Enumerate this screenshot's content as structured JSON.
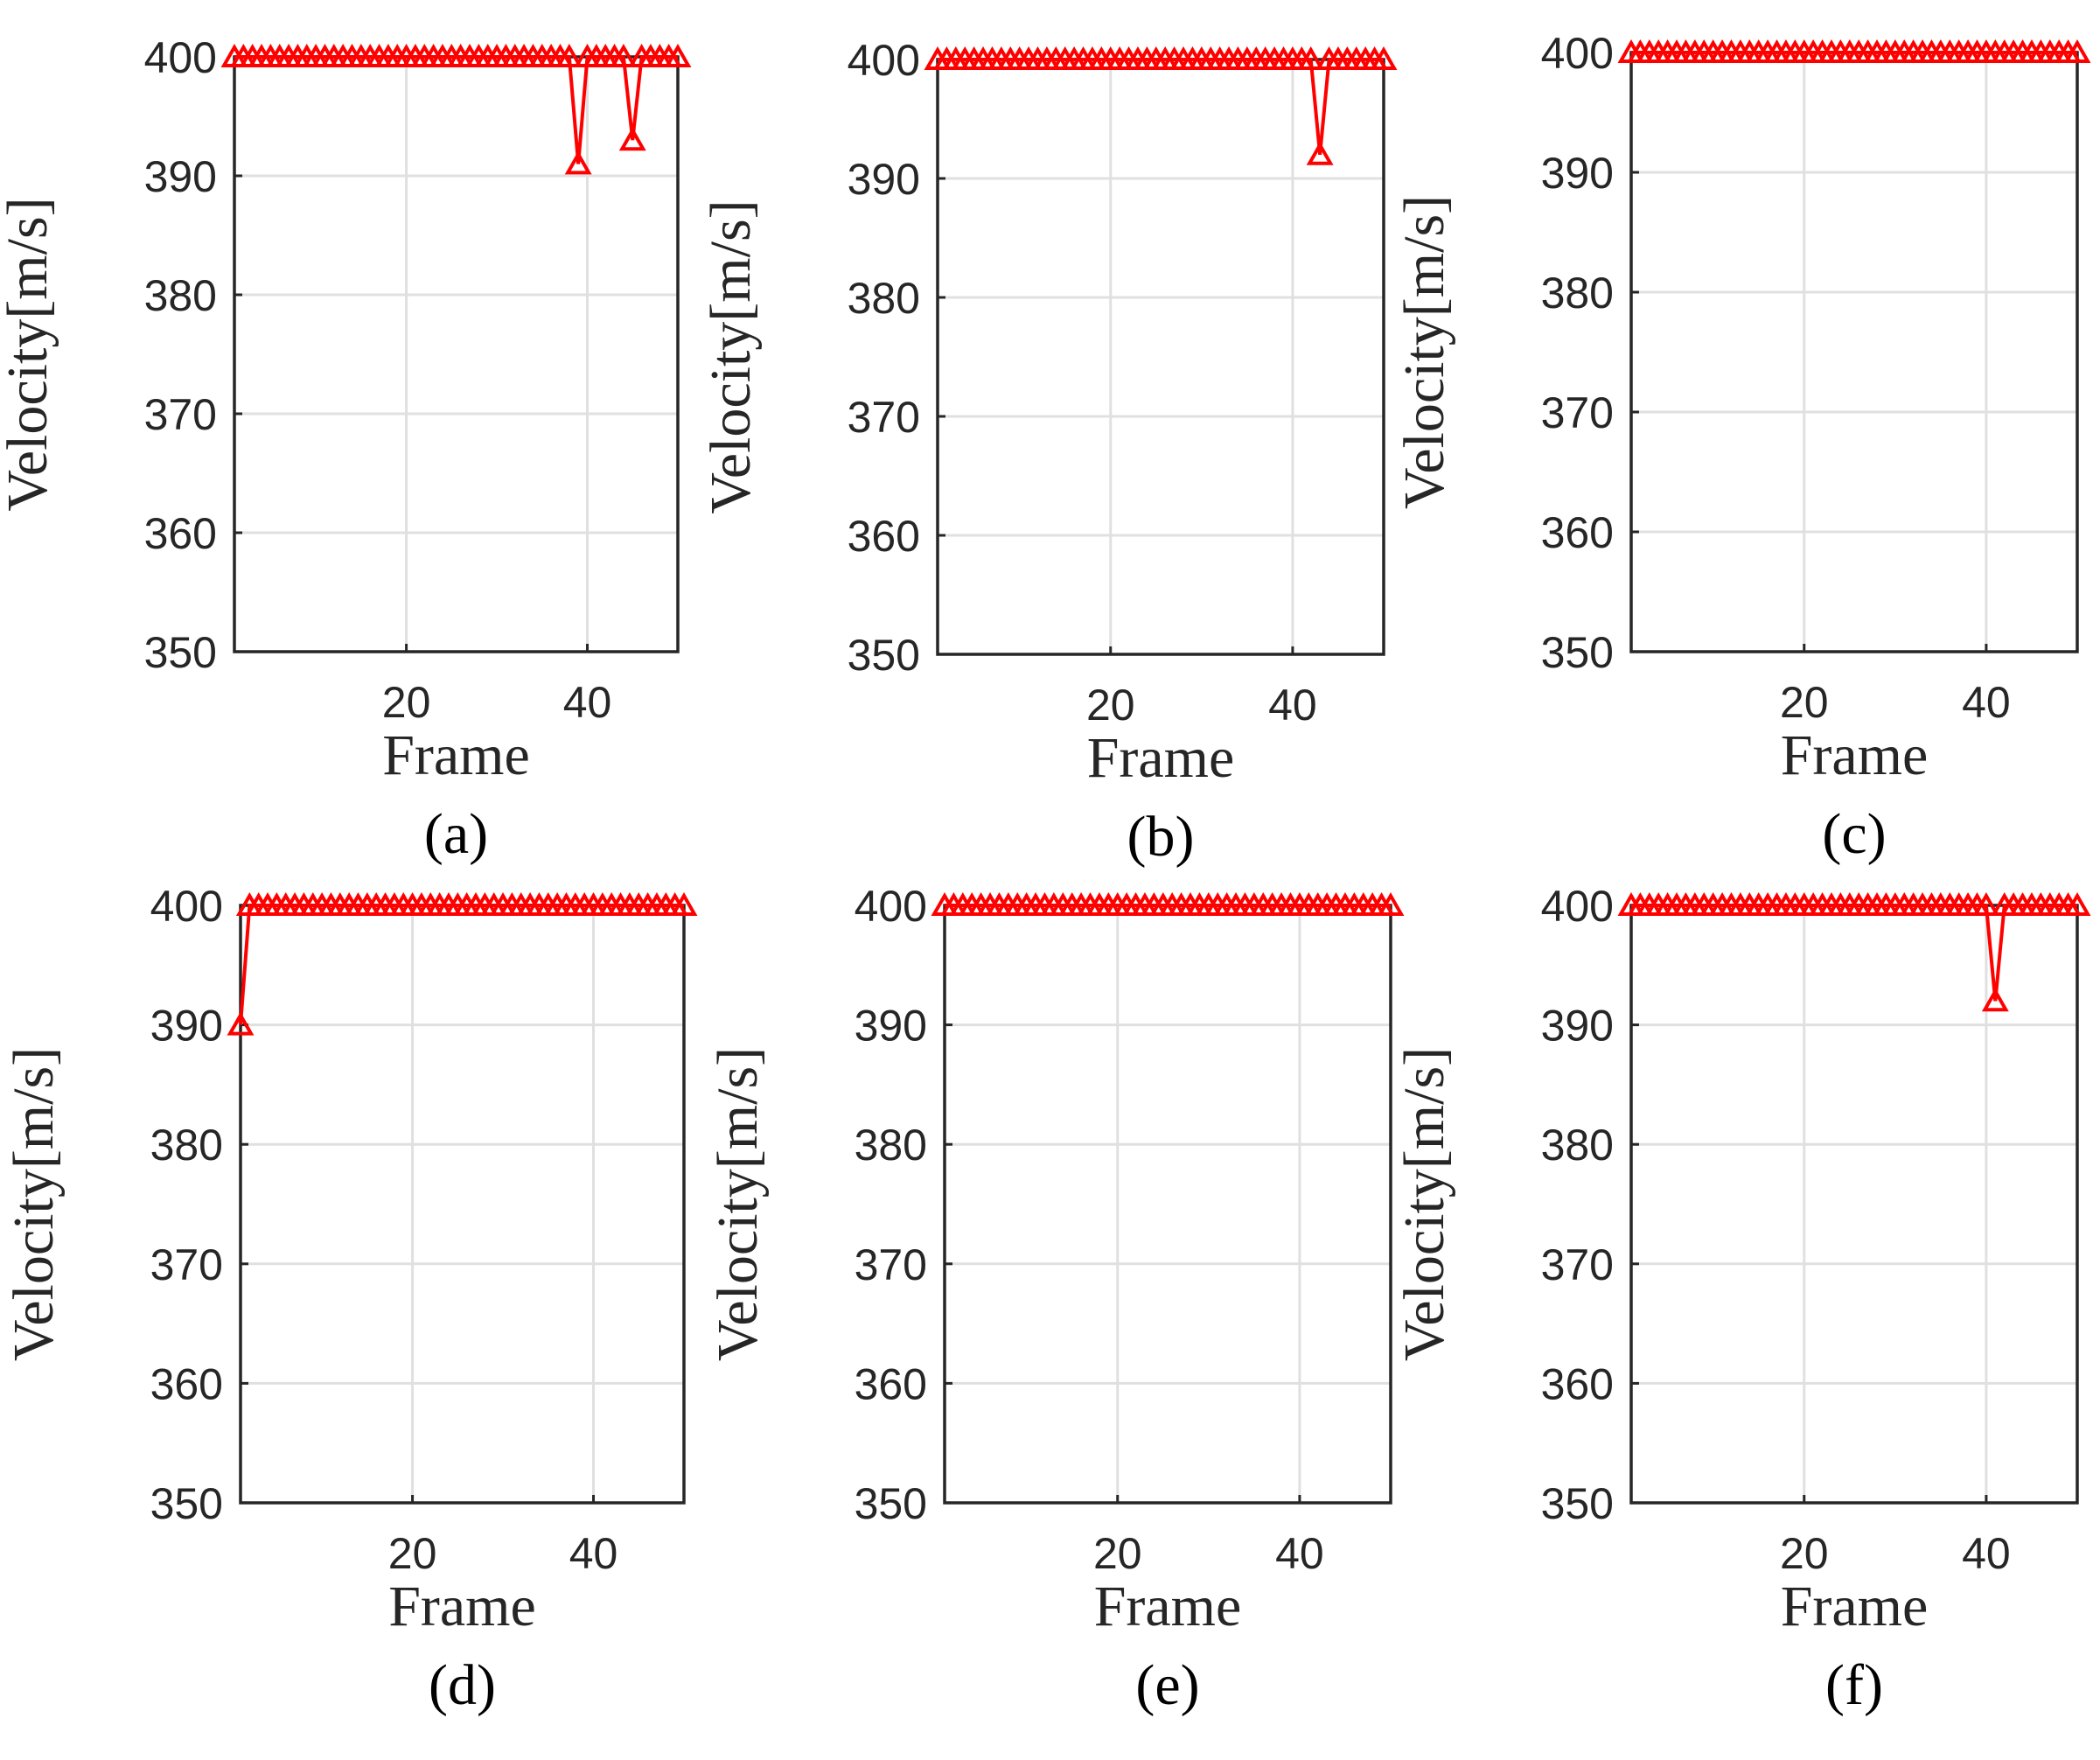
{
  "figure": {
    "colors": {
      "series": "#ff0000",
      "grid": "#e0e0e0",
      "axis": "#262626"
    }
  },
  "chart_data": [
    {
      "panel_label": "(a)",
      "type": "line",
      "marker": "triangle",
      "xlabel": "Frame",
      "ylabel": "Velocity[m/s]",
      "xlim": [
        1,
        50
      ],
      "ylim": [
        350,
        400
      ],
      "xticks": [
        20,
        40
      ],
      "yticks": [
        350,
        360,
        370,
        380,
        390,
        400
      ],
      "grid": true,
      "series": [
        {
          "values": [
            400,
            400,
            400,
            400,
            400,
            400,
            400,
            400,
            400,
            400,
            400,
            400,
            400,
            400,
            400,
            400,
            400,
            400,
            400,
            400,
            400,
            400,
            400,
            400,
            400,
            400,
            400,
            400,
            400,
            400,
            400,
            400,
            400,
            400,
            400,
            400,
            400,
            400,
            391,
            400,
            400,
            400,
            400,
            400,
            393,
            400,
            400,
            400,
            400,
            400
          ]
        }
      ]
    },
    {
      "panel_label": "(b)",
      "type": "line",
      "marker": "triangle",
      "xlabel": "Frame",
      "ylabel": "Velocity[m/s]",
      "xlim": [
        1,
        50
      ],
      "ylim": [
        350,
        400
      ],
      "xticks": [
        20,
        40
      ],
      "yticks": [
        350,
        360,
        370,
        380,
        390,
        400
      ],
      "grid": true,
      "series": [
        {
          "values": [
            400,
            400,
            400,
            400,
            400,
            400,
            400,
            400,
            400,
            400,
            400,
            400,
            400,
            400,
            400,
            400,
            400,
            400,
            400,
            400,
            400,
            400,
            400,
            400,
            400,
            400,
            400,
            400,
            400,
            400,
            400,
            400,
            400,
            400,
            400,
            400,
            400,
            400,
            400,
            400,
            400,
            400,
            392,
            400,
            400,
            400,
            400,
            400,
            400,
            400
          ]
        }
      ]
    },
    {
      "panel_label": "(c)",
      "type": "line",
      "marker": "triangle",
      "xlabel": "Frame",
      "ylabel": "Velocity[m/s]",
      "xlim": [
        1,
        50
      ],
      "ylim": [
        350,
        400
      ],
      "xticks": [
        20,
        40
      ],
      "yticks": [
        350,
        360,
        370,
        380,
        390,
        400
      ],
      "grid": true,
      "series": [
        {
          "values": [
            400,
            400,
            400,
            400,
            400,
            400,
            400,
            400,
            400,
            400,
            400,
            400,
            400,
            400,
            400,
            400,
            400,
            400,
            400,
            400,
            400,
            400,
            400,
            400,
            400,
            400,
            400,
            400,
            400,
            400,
            400,
            400,
            400,
            400,
            400,
            400,
            400,
            400,
            400,
            400,
            400,
            400,
            400,
            400,
            400,
            400,
            400,
            400,
            400,
            400
          ]
        }
      ]
    },
    {
      "panel_label": "(d)",
      "type": "line",
      "marker": "triangle",
      "xlabel": "Frame",
      "ylabel": "Velocity[m/s]",
      "xlim": [
        1,
        50
      ],
      "ylim": [
        350,
        400
      ],
      "xticks": [
        20,
        40
      ],
      "yticks": [
        350,
        360,
        370,
        380,
        390,
        400
      ],
      "grid": true,
      "series": [
        {
          "values": [
            390,
            400,
            400,
            400,
            400,
            400,
            400,
            400,
            400,
            400,
            400,
            400,
            400,
            400,
            400,
            400,
            400,
            400,
            400,
            400,
            400,
            400,
            400,
            400,
            400,
            400,
            400,
            400,
            400,
            400,
            400,
            400,
            400,
            400,
            400,
            400,
            400,
            400,
            400,
            400,
            400,
            400,
            400,
            400,
            400,
            400,
            400,
            400,
            400,
            400
          ]
        }
      ]
    },
    {
      "panel_label": "(e)",
      "type": "line",
      "marker": "triangle",
      "xlabel": "Frame",
      "ylabel": "Velocity[m/s]",
      "xlim": [
        1,
        50
      ],
      "ylim": [
        350,
        400
      ],
      "xticks": [
        20,
        40
      ],
      "yticks": [
        350,
        360,
        370,
        380,
        390,
        400
      ],
      "grid": true,
      "series": [
        {
          "values": [
            400,
            400,
            400,
            400,
            400,
            400,
            400,
            400,
            400,
            400,
            400,
            400,
            400,
            400,
            400,
            400,
            400,
            400,
            400,
            400,
            400,
            400,
            400,
            400,
            400,
            400,
            400,
            400,
            400,
            400,
            400,
            400,
            400,
            400,
            400,
            400,
            400,
            400,
            400,
            400,
            400,
            400,
            400,
            400,
            400,
            400,
            400,
            400,
            400,
            400
          ]
        }
      ]
    },
    {
      "panel_label": "(f)",
      "type": "line",
      "marker": "triangle",
      "xlabel": "Frame",
      "ylabel": "Velocity[m/s]",
      "xlim": [
        1,
        50
      ],
      "ylim": [
        350,
        400
      ],
      "xticks": [
        20,
        40
      ],
      "yticks": [
        350,
        360,
        370,
        380,
        390,
        400
      ],
      "grid": true,
      "series": [
        {
          "values": [
            400,
            400,
            400,
            400,
            400,
            400,
            400,
            400,
            400,
            400,
            400,
            400,
            400,
            400,
            400,
            400,
            400,
            400,
            400,
            400,
            400,
            400,
            400,
            400,
            400,
            400,
            400,
            400,
            400,
            400,
            400,
            400,
            400,
            400,
            400,
            400,
            400,
            400,
            400,
            400,
            392,
            400,
            400,
            400,
            400,
            400,
            400,
            400,
            400,
            400
          ]
        }
      ]
    }
  ]
}
